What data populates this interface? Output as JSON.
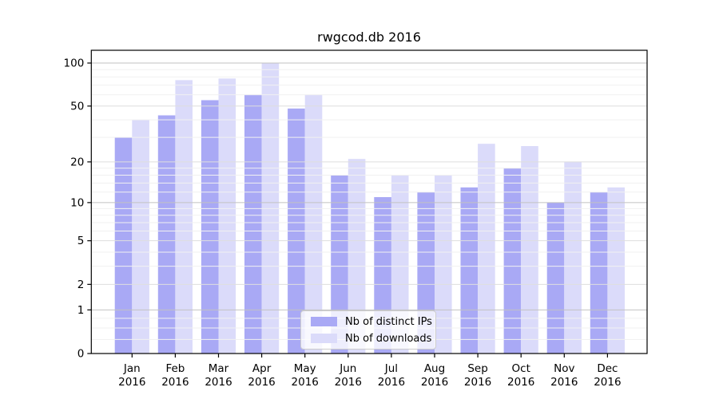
{
  "title": "rwgcod.db 2016",
  "legend": {
    "items": [
      {
        "label": "Nb of distinct IPs",
        "color": "#a9a9f5"
      },
      {
        "label": "Nb of downloads",
        "color": "#dbdbfa"
      }
    ]
  },
  "colors": {
    "bar_dark": "#a9a9f5",
    "bar_light": "#dbdbfa",
    "grid_decade": "#c2c2c2",
    "grid_major": "#dedede",
    "grid_minor": "#f1f1f1",
    "axis": "#000000",
    "legend_border": "#cccccc"
  },
  "y_axis": {
    "tick_labels": [
      "100",
      "50",
      "20",
      "10",
      "5",
      "2",
      "1",
      "0"
    ],
    "tick_values": [
      100,
      50,
      20,
      10,
      5,
      2,
      1,
      0
    ]
  },
  "x_axis": {
    "tick_labels_line1": [
      "Jan",
      "Feb",
      "Mar",
      "Apr",
      "May",
      "Jun",
      "Jul",
      "Aug",
      "Sep",
      "Oct",
      "Nov",
      "Dec"
    ],
    "tick_labels_line2": [
      "2016",
      "2016",
      "2016",
      "2016",
      "2016",
      "2016",
      "2016",
      "2016",
      "2016",
      "2016",
      "2016",
      "2016"
    ]
  },
  "chart_data": {
    "type": "bar",
    "title": "rwgcod.db 2016",
    "categories": [
      "Jan 2016",
      "Feb 2016",
      "Mar 2016",
      "Apr 2016",
      "May 2016",
      "Jun 2016",
      "Jul 2016",
      "Aug 2016",
      "Sep 2016",
      "Oct 2016",
      "Nov 2016",
      "Dec 2016"
    ],
    "series": [
      {
        "name": "Nb of distinct IPs",
        "values": [
          30,
          43,
          55,
          60,
          48,
          16,
          11,
          12,
          13,
          18,
          10,
          12
        ]
      },
      {
        "name": "Nb of downloads",
        "values": [
          40,
          76,
          78,
          100,
          60,
          21,
          16,
          16,
          27,
          26,
          20,
          13
        ]
      }
    ],
    "xlabel": "",
    "ylabel": "",
    "y_scale": "symlog: position proportional to log10(1+y)",
    "y_ticks": [
      0,
      1,
      2,
      5,
      10,
      20,
      50,
      100
    ],
    "y_minor_ticks": [
      0.25,
      0.5,
      0.75,
      3,
      4,
      6,
      7,
      8,
      9,
      12,
      14,
      16,
      18,
      30,
      40,
      60,
      70,
      80,
      90
    ],
    "ylim": [
      0,
      122
    ],
    "grid": "horizontal major + minor",
    "legend_position": "inside bottom center-right",
    "bar_arrangement": "paired, dark series left of tick, light series right of tick"
  }
}
